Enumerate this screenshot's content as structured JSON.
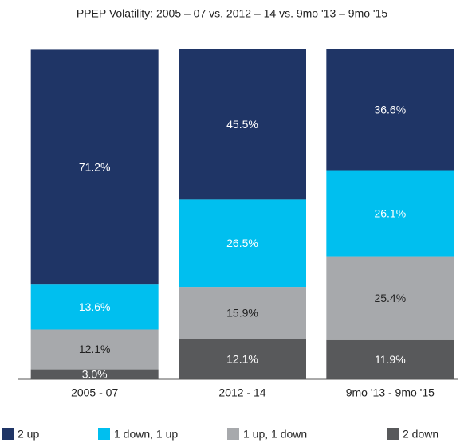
{
  "chart_data": {
    "type": "stacked_bar",
    "title": "PPEP Volatility: 2005 – 07 vs. 2012 – 14 vs. 9mo '13 – 9mo '15",
    "categories": [
      "2005 - 07",
      "2012 - 14",
      "9mo '13 - 9mo '15"
    ],
    "series": [
      {
        "name": "2 up",
        "color": "#1f3566",
        "values": [
          71.2,
          45.5,
          36.6
        ],
        "value_labels": [
          "71.2%",
          "45.5%",
          "36.6%"
        ]
      },
      {
        "name": "1 down, 1 up",
        "color": "#00bfef",
        "values": [
          13.6,
          26.5,
          26.1
        ],
        "value_labels": [
          "13.6%",
          "26.5%",
          "26.1%"
        ]
      },
      {
        "name": "1 up, 1 down",
        "color": "#a7a9ac",
        "values": [
          12.1,
          15.9,
          25.4
        ],
        "value_labels": [
          "12.1%",
          "15.9%",
          "25.4%"
        ]
      },
      {
        "name": "2 down",
        "color": "#58595b",
        "values": [
          3.0,
          12.1,
          11.9
        ],
        "value_labels": [
          "3.0%",
          "12.1%",
          "11.9%"
        ]
      }
    ],
    "ylim": [
      0,
      100
    ],
    "legend": "bottom"
  }
}
